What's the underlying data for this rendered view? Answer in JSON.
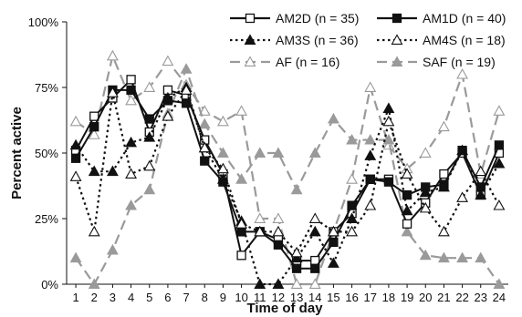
{
  "chart_data": {
    "type": "line",
    "xlabel": "Time of day",
    "ylabel": "Percent active",
    "x": [
      1,
      2,
      3,
      4,
      5,
      6,
      7,
      8,
      9,
      10,
      11,
      12,
      13,
      14,
      15,
      16,
      17,
      18,
      19,
      20,
      21,
      22,
      23,
      24
    ],
    "xticks": [
      "1",
      "2",
      "3",
      "4",
      "5",
      "6",
      "7",
      "8",
      "9",
      "10",
      "11",
      "12",
      "13",
      "14",
      "15",
      "16",
      "17",
      "18",
      "19",
      "20",
      "21",
      "22",
      "23",
      "24"
    ],
    "ylim": [
      0,
      100
    ],
    "yticks": [
      {
        "value": 0,
        "label": "0%"
      },
      {
        "value": 25,
        "label": "25%"
      },
      {
        "value": 50,
        "label": "50%"
      },
      {
        "value": 75,
        "label": "75%"
      },
      {
        "value": 100,
        "label": "100%"
      }
    ],
    "legend_position": "top-right",
    "grid": false,
    "series": [
      {
        "name": "AM2D (n = 35)",
        "color": "#111111",
        "dash": "solid",
        "marker": "square-open",
        "values": [
          51,
          64,
          71,
          78,
          58,
          74,
          72,
          55,
          42,
          11,
          20,
          17,
          9,
          9,
          20,
          27,
          40,
          40,
          23,
          31,
          42,
          50,
          34,
          50
        ]
      },
      {
        "name": "AM1D (n = 40)",
        "color": "#111111",
        "dash": "solid",
        "marker": "square-filled",
        "values": [
          48,
          60,
          74,
          74,
          63,
          70,
          69,
          47,
          39,
          20,
          20,
          15,
          6,
          6,
          16,
          30,
          40,
          39,
          34,
          37,
          38,
          51,
          37,
          53
        ]
      },
      {
        "name": "AM3S (n = 36)",
        "color": "#111111",
        "dash": "dotted",
        "marker": "triangle-filled",
        "values": [
          53,
          43,
          43,
          54,
          56,
          71,
          75,
          52,
          40,
          24,
          0,
          0,
          10,
          20,
          8,
          25,
          49,
          67,
          28,
          35,
          37,
          51,
          34,
          46
        ]
      },
      {
        "name": "AM4S (n = 18)",
        "color": "#111111",
        "dash": "dotted",
        "marker": "triangle-open",
        "values": [
          41,
          20,
          73,
          42,
          45,
          64,
          74,
          52,
          44,
          23,
          20,
          20,
          12,
          25,
          20,
          20,
          30,
          62,
          42,
          29,
          20,
          33,
          43,
          30
        ]
      },
      {
        "name": "AF (n = 16)",
        "color": "#9a9a9a",
        "dash": "dashed",
        "marker": "triangle-open",
        "values": [
          62,
          57,
          87,
          70,
          75,
          85,
          76,
          66,
          62,
          66,
          25,
          25,
          0,
          0,
          20,
          40,
          75,
          53,
          44,
          50,
          60,
          80,
          42,
          66
        ]
      },
      {
        "name": "SAF (n = 19)",
        "color": "#9a9a9a",
        "dash": "dashed",
        "marker": "triangle-filled",
        "values": [
          10,
          0,
          13,
          30,
          36,
          65,
          82,
          61,
          50,
          40,
          50,
          50,
          36,
          50,
          63,
          55,
          55,
          55,
          20,
          11,
          10,
          10,
          10,
          0
        ]
      }
    ]
  }
}
